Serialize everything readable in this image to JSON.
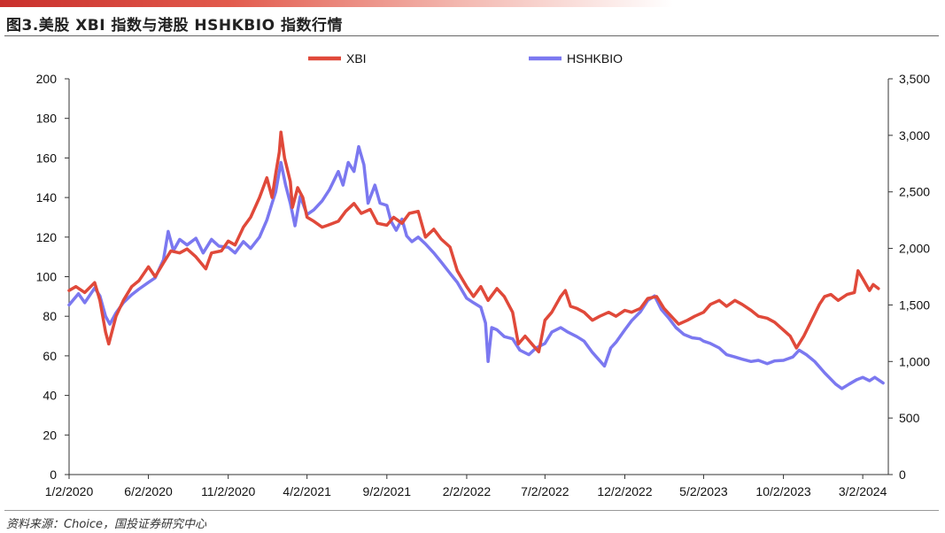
{
  "figure": {
    "title": "图3.美股 XBI 指数与港股 HSHKBIO 指数行情",
    "source": "资料来源：Choice，国投证券研究中心"
  },
  "colors": {
    "xbi": "#e0493a",
    "hshkbio": "#7b78f0",
    "axis": "#333333"
  },
  "chart_data": {
    "type": "line",
    "title": "",
    "legend_position": "top",
    "grid": false,
    "x_axis": {
      "type": "date",
      "range": [
        "2020-01-02",
        "2024-04-20"
      ],
      "tick_dates": [
        "2020-01-02",
        "2020-06-02",
        "2020-11-02",
        "2021-04-02",
        "2021-09-02",
        "2022-02-02",
        "2022-07-02",
        "2022-12-02",
        "2023-05-02",
        "2023-10-02",
        "2024-03-02"
      ],
      "tick_labels": [
        "1/2/2020",
        "6/2/2020",
        "11/2/2020",
        "4/2/2021",
        "9/2/2021",
        "2/2/2022",
        "7/2/2022",
        "12/2/2022",
        "5/2/2023",
        "10/2/2023",
        "3/2/2024"
      ]
    },
    "y_left": {
      "range": [
        0,
        200
      ],
      "ticks": [
        0,
        20,
        40,
        60,
        80,
        100,
        120,
        140,
        160,
        180,
        200
      ],
      "tick_labels": [
        "0",
        "20",
        "40",
        "60",
        "80",
        "100",
        "120",
        "140",
        "160",
        "180",
        "200"
      ]
    },
    "y_right": {
      "range": [
        0,
        3500
      ],
      "ticks": [
        0,
        500,
        1000,
        1500,
        2000,
        2500,
        3000,
        3500
      ],
      "tick_labels": [
        "0",
        "500",
        "1,000",
        "1,500",
        "2,000",
        "2,500",
        "3,000",
        "3,500"
      ]
    },
    "series": [
      {
        "name": "XBI",
        "axis": "left",
        "points": [
          [
            "2020-01-02",
            93
          ],
          [
            "2020-01-15",
            95
          ],
          [
            "2020-02-01",
            92
          ],
          [
            "2020-02-20",
            97
          ],
          [
            "2020-03-01",
            88
          ],
          [
            "2020-03-12",
            72
          ],
          [
            "2020-03-18",
            66
          ],
          [
            "2020-04-01",
            80
          ],
          [
            "2020-04-15",
            88
          ],
          [
            "2020-05-01",
            95
          ],
          [
            "2020-05-15",
            98
          ],
          [
            "2020-06-02",
            105
          ],
          [
            "2020-06-15",
            100
          ],
          [
            "2020-07-01",
            107
          ],
          [
            "2020-07-15",
            113
          ],
          [
            "2020-08-01",
            112
          ],
          [
            "2020-08-15",
            114
          ],
          [
            "2020-09-01",
            110
          ],
          [
            "2020-09-20",
            104
          ],
          [
            "2020-10-01",
            112
          ],
          [
            "2020-10-20",
            113
          ],
          [
            "2020-11-02",
            118
          ],
          [
            "2020-11-15",
            116
          ],
          [
            "2020-12-01",
            125
          ],
          [
            "2020-12-15",
            130
          ],
          [
            "2021-01-01",
            140
          ],
          [
            "2021-01-15",
            150
          ],
          [
            "2021-01-25",
            140
          ],
          [
            "2021-02-01",
            152
          ],
          [
            "2021-02-08",
            163
          ],
          [
            "2021-02-11",
            173
          ],
          [
            "2021-02-18",
            160
          ],
          [
            "2021-03-01",
            148
          ],
          [
            "2021-03-05",
            135
          ],
          [
            "2021-03-15",
            145
          ],
          [
            "2021-03-25",
            140
          ],
          [
            "2021-04-02",
            130
          ],
          [
            "2021-04-15",
            128
          ],
          [
            "2021-05-01",
            125
          ],
          [
            "2021-05-12",
            126
          ],
          [
            "2021-06-01",
            128
          ],
          [
            "2021-06-15",
            133
          ],
          [
            "2021-07-01",
            137
          ],
          [
            "2021-07-15",
            132
          ],
          [
            "2021-08-01",
            134
          ],
          [
            "2021-08-15",
            127
          ],
          [
            "2021-09-02",
            126
          ],
          [
            "2021-09-15",
            130
          ],
          [
            "2021-10-01",
            127
          ],
          [
            "2021-10-15",
            132
          ],
          [
            "2021-11-01",
            133
          ],
          [
            "2021-11-15",
            120
          ],
          [
            "2021-12-01",
            124
          ],
          [
            "2021-12-15",
            119
          ],
          [
            "2022-01-01",
            115
          ],
          [
            "2022-01-15",
            103
          ],
          [
            "2022-02-02",
            95
          ],
          [
            "2022-02-15",
            90
          ],
          [
            "2022-03-01",
            95
          ],
          [
            "2022-03-15",
            88
          ],
          [
            "2022-04-01",
            94
          ],
          [
            "2022-04-15",
            90
          ],
          [
            "2022-05-01",
            82
          ],
          [
            "2022-05-12",
            66
          ],
          [
            "2022-05-25",
            70
          ],
          [
            "2022-06-10",
            65
          ],
          [
            "2022-06-20",
            62
          ],
          [
            "2022-07-02",
            78
          ],
          [
            "2022-07-15",
            82
          ],
          [
            "2022-08-01",
            90
          ],
          [
            "2022-08-10",
            93
          ],
          [
            "2022-08-20",
            85
          ],
          [
            "2022-09-01",
            84
          ],
          [
            "2022-09-15",
            82
          ],
          [
            "2022-10-01",
            78
          ],
          [
            "2022-10-15",
            80
          ],
          [
            "2022-11-01",
            82
          ],
          [
            "2022-11-15",
            80
          ],
          [
            "2022-12-02",
            83
          ],
          [
            "2022-12-15",
            82
          ],
          [
            "2023-01-01",
            84
          ],
          [
            "2023-01-15",
            89
          ],
          [
            "2023-02-01",
            90
          ],
          [
            "2023-02-15",
            84
          ],
          [
            "2023-03-01",
            80
          ],
          [
            "2023-03-15",
            76
          ],
          [
            "2023-04-01",
            78
          ],
          [
            "2023-04-15",
            80
          ],
          [
            "2023-05-02",
            82
          ],
          [
            "2023-05-15",
            86
          ],
          [
            "2023-06-01",
            88
          ],
          [
            "2023-06-15",
            85
          ],
          [
            "2023-07-01",
            88
          ],
          [
            "2023-07-15",
            86
          ],
          [
            "2023-08-01",
            83
          ],
          [
            "2023-08-15",
            80
          ],
          [
            "2023-09-01",
            79
          ],
          [
            "2023-09-15",
            77
          ],
          [
            "2023-10-02",
            73
          ],
          [
            "2023-10-15",
            70
          ],
          [
            "2023-10-27",
            64
          ],
          [
            "2023-11-10",
            70
          ],
          [
            "2023-11-25",
            78
          ],
          [
            "2023-12-10",
            86
          ],
          [
            "2023-12-20",
            90
          ],
          [
            "2024-01-01",
            91
          ],
          [
            "2024-01-15",
            88
          ],
          [
            "2024-02-01",
            91
          ],
          [
            "2024-02-15",
            92
          ],
          [
            "2024-02-22",
            103
          ],
          [
            "2024-03-02",
            99
          ],
          [
            "2024-03-15",
            93
          ],
          [
            "2024-03-22",
            96
          ],
          [
            "2024-04-01",
            94
          ]
        ]
      },
      {
        "name": "HSHKBIO",
        "axis": "right",
        "points": [
          [
            "2020-01-02",
            1500
          ],
          [
            "2020-01-20",
            1600
          ],
          [
            "2020-02-01",
            1520
          ],
          [
            "2020-02-20",
            1650
          ],
          [
            "2020-03-01",
            1580
          ],
          [
            "2020-03-12",
            1400
          ],
          [
            "2020-03-20",
            1330
          ],
          [
            "2020-04-01",
            1430
          ],
          [
            "2020-04-15",
            1520
          ],
          [
            "2020-05-01",
            1590
          ],
          [
            "2020-05-15",
            1640
          ],
          [
            "2020-06-02",
            1700
          ],
          [
            "2020-06-15",
            1740
          ],
          [
            "2020-07-01",
            1900
          ],
          [
            "2020-07-10",
            2150
          ],
          [
            "2020-07-20",
            1980
          ],
          [
            "2020-08-01",
            2080
          ],
          [
            "2020-08-15",
            2030
          ],
          [
            "2020-09-01",
            2090
          ],
          [
            "2020-09-15",
            1960
          ],
          [
            "2020-10-01",
            2080
          ],
          [
            "2020-10-15",
            2020
          ],
          [
            "2020-11-02",
            2010
          ],
          [
            "2020-11-15",
            1960
          ],
          [
            "2020-12-01",
            2060
          ],
          [
            "2020-12-15",
            2000
          ],
          [
            "2021-01-01",
            2100
          ],
          [
            "2021-01-15",
            2250
          ],
          [
            "2021-01-25",
            2400
          ],
          [
            "2021-02-01",
            2500
          ],
          [
            "2021-02-11",
            2760
          ],
          [
            "2021-02-20",
            2560
          ],
          [
            "2021-03-01",
            2400
          ],
          [
            "2021-03-10",
            2200
          ],
          [
            "2021-03-20",
            2460
          ],
          [
            "2021-04-02",
            2300
          ],
          [
            "2021-04-15",
            2340
          ],
          [
            "2021-05-01",
            2420
          ],
          [
            "2021-05-15",
            2520
          ],
          [
            "2021-06-01",
            2680
          ],
          [
            "2021-06-10",
            2560
          ],
          [
            "2021-06-20",
            2760
          ],
          [
            "2021-07-01",
            2680
          ],
          [
            "2021-07-10",
            2900
          ],
          [
            "2021-07-20",
            2740
          ],
          [
            "2021-07-28",
            2400
          ],
          [
            "2021-08-10",
            2560
          ],
          [
            "2021-08-20",
            2400
          ],
          [
            "2021-09-02",
            2380
          ],
          [
            "2021-09-10",
            2240
          ],
          [
            "2021-09-20",
            2160
          ],
          [
            "2021-10-01",
            2260
          ],
          [
            "2021-10-10",
            2110
          ],
          [
            "2021-10-20",
            2060
          ],
          [
            "2021-11-01",
            2100
          ],
          [
            "2021-11-15",
            2040
          ],
          [
            "2021-12-01",
            1960
          ],
          [
            "2021-12-15",
            1880
          ],
          [
            "2022-01-01",
            1780
          ],
          [
            "2022-01-15",
            1700
          ],
          [
            "2022-02-02",
            1560
          ],
          [
            "2022-02-15",
            1520
          ],
          [
            "2022-03-01",
            1480
          ],
          [
            "2022-03-10",
            1340
          ],
          [
            "2022-03-15",
            1000
          ],
          [
            "2022-03-22",
            1300
          ],
          [
            "2022-04-01",
            1280
          ],
          [
            "2022-04-15",
            1220
          ],
          [
            "2022-05-01",
            1200
          ],
          [
            "2022-05-15",
            1100
          ],
          [
            "2022-06-01",
            1060
          ],
          [
            "2022-06-15",
            1120
          ],
          [
            "2022-07-02",
            1160
          ],
          [
            "2022-07-15",
            1260
          ],
          [
            "2022-08-01",
            1300
          ],
          [
            "2022-08-15",
            1260
          ],
          [
            "2022-09-01",
            1220
          ],
          [
            "2022-09-15",
            1180
          ],
          [
            "2022-10-01",
            1080
          ],
          [
            "2022-10-24",
            960
          ],
          [
            "2022-11-05",
            1120
          ],
          [
            "2022-11-15",
            1170
          ],
          [
            "2022-12-02",
            1280
          ],
          [
            "2022-12-15",
            1360
          ],
          [
            "2023-01-01",
            1440
          ],
          [
            "2023-01-15",
            1540
          ],
          [
            "2023-01-28",
            1580
          ],
          [
            "2023-02-10",
            1460
          ],
          [
            "2023-02-25",
            1380
          ],
          [
            "2023-03-10",
            1300
          ],
          [
            "2023-03-25",
            1240
          ],
          [
            "2023-04-10",
            1210
          ],
          [
            "2023-04-25",
            1200
          ],
          [
            "2023-05-02",
            1180
          ],
          [
            "2023-05-15",
            1160
          ],
          [
            "2023-06-01",
            1120
          ],
          [
            "2023-06-15",
            1060
          ],
          [
            "2023-07-01",
            1040
          ],
          [
            "2023-07-15",
            1020
          ],
          [
            "2023-08-01",
            1000
          ],
          [
            "2023-08-15",
            1010
          ],
          [
            "2023-09-01",
            980
          ],
          [
            "2023-09-15",
            1005
          ],
          [
            "2023-10-02",
            1010
          ],
          [
            "2023-10-20",
            1040
          ],
          [
            "2023-11-01",
            1100
          ],
          [
            "2023-11-15",
            1060
          ],
          [
            "2023-12-01",
            1000
          ],
          [
            "2023-12-20",
            900
          ],
          [
            "2024-01-10",
            800
          ],
          [
            "2024-01-22",
            760
          ],
          [
            "2024-02-05",
            800
          ],
          [
            "2024-02-20",
            840
          ],
          [
            "2024-03-02",
            860
          ],
          [
            "2024-03-15",
            830
          ],
          [
            "2024-03-25",
            860
          ],
          [
            "2024-04-10",
            810
          ]
        ]
      }
    ]
  }
}
